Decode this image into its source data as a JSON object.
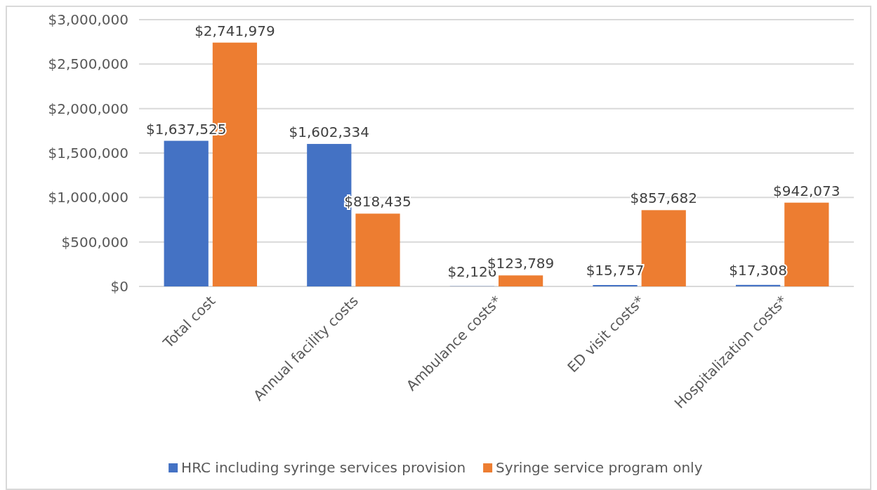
{
  "chart_data": {
    "type": "bar",
    "categories": [
      "Total cost",
      "Annual facility costs",
      "Ambulance costs*",
      "ED visit costs*",
      "Hospitalization costs*"
    ],
    "series": [
      {
        "name": "HRC including syringe services provision",
        "color": "#4472c4",
        "values": [
          1637525,
          1602334,
          2126,
          15757,
          17308
        ],
        "value_labels": [
          "$1,637,525",
          "$1,602,334",
          "$2,126",
          "$15,757",
          "$17,308"
        ]
      },
      {
        "name": "Syringe service program only",
        "color": "#ed7d31",
        "values": [
          2741979,
          818435,
          123789,
          857682,
          942073
        ],
        "value_labels": [
          "$2,741,979",
          "$818,435",
          "$123,789",
          "$857,682",
          "$942,073"
        ]
      }
    ],
    "ylim": [
      0,
      3000000
    ],
    "yticks": [
      {
        "value": 0,
        "label": "$0"
      },
      {
        "value": 500000,
        "label": "$500,000"
      },
      {
        "value": 1000000,
        "label": "$1,000,000"
      },
      {
        "value": 1500000,
        "label": "$1,500,000"
      },
      {
        "value": 2000000,
        "label": "$2,000,000"
      },
      {
        "value": 2500000,
        "label": "$2,500,000"
      },
      {
        "value": 3000000,
        "label": "$3,000,000"
      }
    ],
    "grid": "y",
    "legend": "bottom"
  }
}
